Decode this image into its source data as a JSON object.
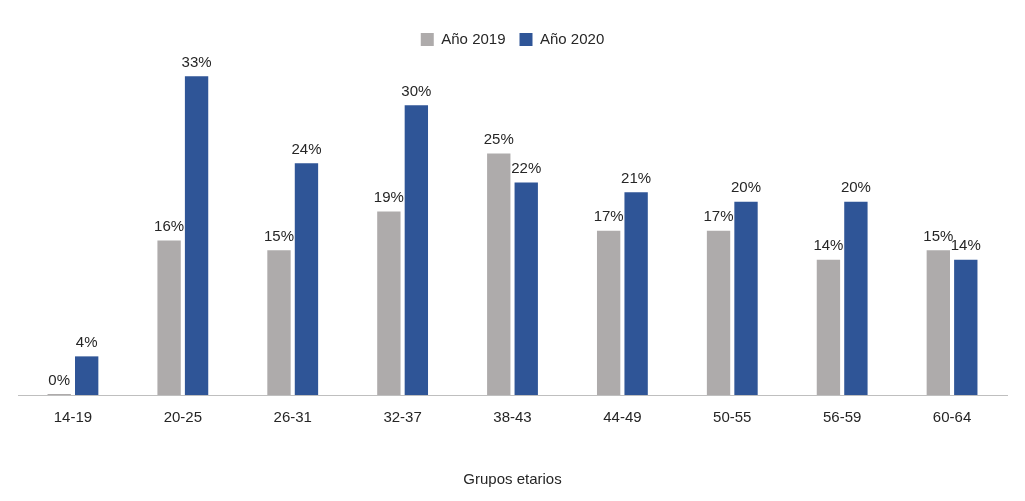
{
  "chart_data": {
    "type": "bar",
    "xlabel": "Grupos etarios",
    "categories": [
      "14-19",
      "20-25",
      "26-31",
      "32-37",
      "38-43",
      "44-49",
      "50-55",
      "56-59",
      "60-64"
    ],
    "series": [
      {
        "name": "Año 2019",
        "color": "#aeabab",
        "values": [
          0,
          16,
          15,
          19,
          25,
          17,
          17,
          14,
          15
        ],
        "value_labels": [
          "0%",
          "16%",
          "15%",
          "19%",
          "25%",
          "17%",
          "17%",
          "14%",
          "15%"
        ]
      },
      {
        "name": "Año 2020",
        "color": "#2f5597",
        "values": [
          4,
          33,
          24,
          30,
          22,
          21,
          20,
          20,
          14
        ],
        "value_labels": [
          "4%",
          "33%",
          "24%",
          "30%",
          "22%",
          "21%",
          "20%",
          "20%",
          "14%"
        ]
      }
    ],
    "legend": "top",
    "grid": false
  }
}
